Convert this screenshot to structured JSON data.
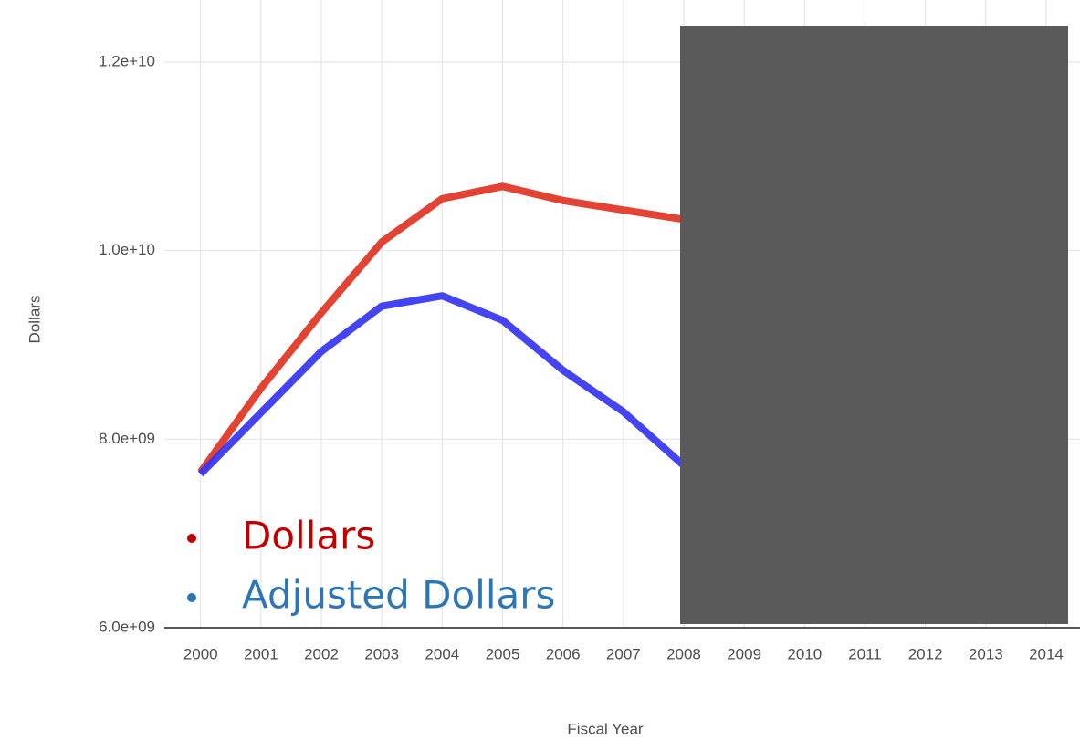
{
  "chart_data": {
    "type": "line",
    "x": [
      2000,
      2001,
      2002,
      2003,
      2004,
      2005,
      2006,
      2007,
      2008,
      2009,
      2010,
      2011,
      2012,
      2013,
      2014
    ],
    "series": [
      {
        "name": "Dollars",
        "color": "#e03322",
        "legend_color": "#c00000",
        "values": [
          7650000000,
          8540000000,
          9340000000,
          10090000000,
          10550000000,
          10680000000,
          10530000000,
          10430000000,
          10330000000,
          null,
          null,
          null,
          null,
          null,
          null
        ]
      },
      {
        "name": "Adjusted Dollars",
        "color": "#3434f2",
        "legend_color": "#2e75b6",
        "values": [
          7630000000,
          8280000000,
          8930000000,
          9410000000,
          9520000000,
          9260000000,
          8730000000,
          8290000000,
          7720000000,
          null,
          null,
          null,
          null,
          null,
          null
        ]
      }
    ],
    "xlabel": "Fiscal Year",
    "ylabel": "Dollars",
    "xlim": [
      1999.4,
      2014.56
    ],
    "ylim": [
      6000000000,
      12650000000
    ],
    "xticks": [
      2000,
      2001,
      2002,
      2003,
      2004,
      2005,
      2006,
      2007,
      2008,
      2009,
      2010,
      2011,
      2012,
      2013,
      2014
    ],
    "yticks": [
      {
        "value": 6000000000,
        "label": "6.0e+09"
      },
      {
        "value": 8000000000,
        "label": "8.0e+09"
      },
      {
        "value": 10000000000,
        "label": "1.0e+10"
      },
      {
        "value": 12000000000,
        "label": "1.2e+10"
      }
    ],
    "grid": true,
    "legend": "lower left"
  }
}
